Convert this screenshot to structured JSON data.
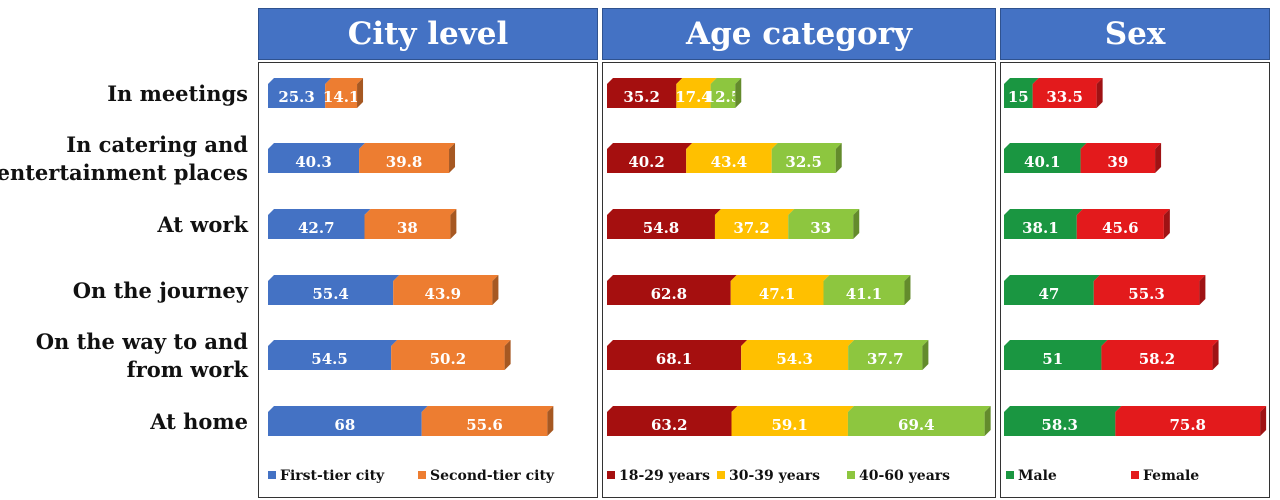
{
  "chart_data": [
    {
      "type": "bar",
      "stacked": true,
      "orientation": "horizontal",
      "title": "City level",
      "categories": [
        "In meetings",
        "In catering and entertainment places",
        "At work",
        "On the journey",
        "On the way to and from work",
        "At home"
      ],
      "series": [
        {
          "name": "First-tier city",
          "color": "#4472c4",
          "values": [
            25.3,
            40.3,
            42.7,
            55.4,
            54.5,
            68
          ]
        },
        {
          "name": "Second-tier city",
          "color": "#ed7d31",
          "values": [
            14.1,
            39.8,
            38,
            43.9,
            50.2,
            55.6
          ]
        }
      ],
      "legend_position": "bottom"
    },
    {
      "type": "bar",
      "stacked": true,
      "orientation": "horizontal",
      "title": "Age category",
      "categories": [
        "In meetings",
        "In catering and entertainment places",
        "At work",
        "On the journey",
        "On the way to and from work",
        "At home"
      ],
      "series": [
        {
          "name": "18-29 years",
          "color": "#a50f0f",
          "values": [
            35.2,
            40.2,
            54.8,
            62.8,
            68.1,
            63.2
          ]
        },
        {
          "name": "30-39 years",
          "color": "#ffc000",
          "values": [
            17.4,
            43.4,
            37.2,
            47.1,
            54.3,
            59.1
          ]
        },
        {
          "name": "40-60 years",
          "color": "#8dc63f",
          "values": [
            12.5,
            32.5,
            33,
            41.1,
            37.7,
            69.4
          ]
        }
      ],
      "legend_position": "bottom"
    },
    {
      "type": "bar",
      "stacked": true,
      "orientation": "horizontal",
      "title": "Sex",
      "categories": [
        "In meetings",
        "In catering and entertainment places",
        "At work",
        "On the journey",
        "On the way to and from work",
        "At home"
      ],
      "series": [
        {
          "name": "Male",
          "color": "#1a9641",
          "values": [
            15,
            40.1,
            38.1,
            47,
            51,
            58.3
          ]
        },
        {
          "name": "Female",
          "color": "#e31a1c",
          "values": [
            33.5,
            39,
            45.6,
            55.3,
            58.2,
            75.8
          ]
        }
      ],
      "legend_position": "bottom"
    }
  ],
  "row_labels": [
    [
      "In meetings"
    ],
    [
      "In catering and",
      "entertainment places"
    ],
    [
      "At work"
    ],
    [
      "On the journey"
    ],
    [
      "On the way to and",
      "from work"
    ],
    [
      "At home"
    ]
  ]
}
